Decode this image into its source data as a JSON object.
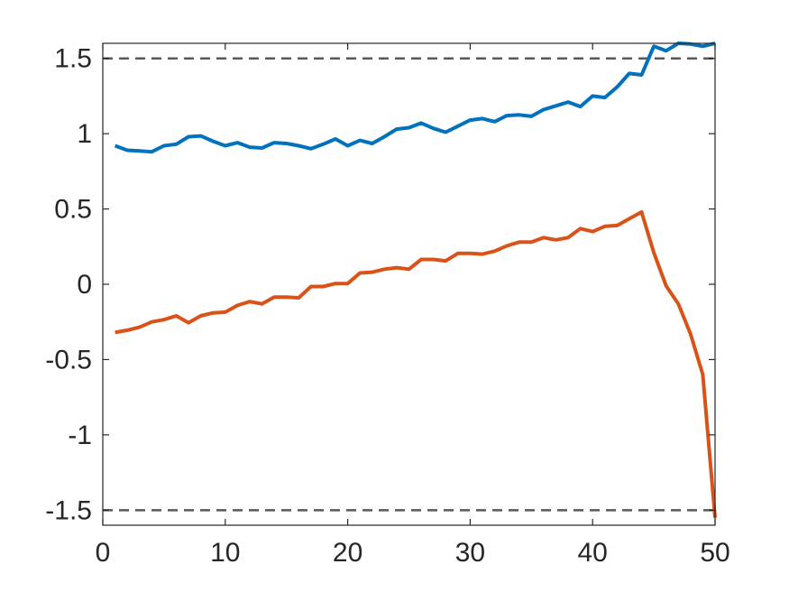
{
  "chart_data": {
    "type": "line",
    "title": "",
    "xlabel": "",
    "ylabel": "",
    "xlim": [
      0,
      50
    ],
    "ylim": [
      -1.6,
      1.6
    ],
    "grid": false,
    "legend": "none",
    "xticks": [
      0,
      10,
      20,
      30,
      40,
      50
    ],
    "xtick_labels": [
      "0",
      "10",
      "20",
      "30",
      "40",
      "50"
    ],
    "yticks": [
      1.5,
      1,
      0.5,
      0,
      -0.5,
      -1,
      -1.5
    ],
    "ytick_labels": [
      "1.5",
      "1",
      "0.5",
      "0",
      "-0.5",
      "-1",
      "-1.5"
    ],
    "reference_lines": [
      {
        "y": 1.5,
        "style": "dashed",
        "color": "#595959"
      },
      {
        "y": -1.5,
        "style": "dashed",
        "color": "#595959"
      }
    ],
    "x": [
      1,
      2,
      3,
      4,
      5,
      6,
      7,
      8,
      9,
      10,
      11,
      12,
      13,
      14,
      15,
      16,
      17,
      18,
      19,
      20,
      21,
      22,
      23,
      24,
      25,
      26,
      27,
      28,
      29,
      30,
      31,
      32,
      33,
      34,
      35,
      36,
      37,
      38,
      39,
      40,
      41,
      42,
      43,
      44,
      45,
      46,
      47,
      48,
      49,
      50
    ],
    "series": [
      {
        "color": "#0072BD",
        "values": [
          0.92,
          0.89,
          0.885,
          0.88,
          0.92,
          0.93,
          0.98,
          0.985,
          0.95,
          0.92,
          0.94,
          0.91,
          0.905,
          0.94,
          0.935,
          0.92,
          0.9,
          0.93,
          0.965,
          0.92,
          0.955,
          0.935,
          0.98,
          1.03,
          1.04,
          1.07,
          1.035,
          1.01,
          1.05,
          1.09,
          1.1,
          1.08,
          1.12,
          1.125,
          1.115,
          1.16,
          1.185,
          1.21,
          1.18,
          1.25,
          1.24,
          1.31,
          1.4,
          1.39,
          1.58,
          1.55,
          1.6,
          1.595,
          1.58,
          1.6
        ]
      },
      {
        "color": "#D95319",
        "values": [
          -0.32,
          -0.305,
          -0.285,
          -0.25,
          -0.235,
          -0.21,
          -0.255,
          -0.21,
          -0.19,
          -0.185,
          -0.14,
          -0.115,
          -0.13,
          -0.085,
          -0.085,
          -0.09,
          -0.015,
          -0.015,
          0.005,
          0.005,
          0.075,
          0.08,
          0.1,
          0.11,
          0.1,
          0.165,
          0.165,
          0.155,
          0.205,
          0.205,
          0.2,
          0.22,
          0.255,
          0.28,
          0.28,
          0.31,
          0.295,
          0.31,
          0.37,
          0.35,
          0.385,
          0.39,
          0.435,
          0.48,
          0.21,
          -0.01,
          -0.13,
          -0.33,
          -0.6,
          -1.55
        ]
      }
    ]
  }
}
